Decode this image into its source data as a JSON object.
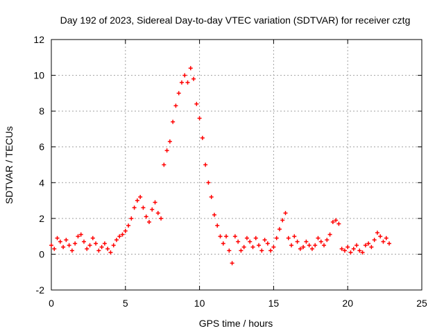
{
  "chart_data": {
    "type": "scatter",
    "title": "Day 192 of 2023, Sidereal Day-to-day VTEC variation (SDTVAR) for receiver cztg",
    "xlabel": "GPS time / hours",
    "ylabel": "SDTVAR / TECUs",
    "xlim": [
      0,
      25
    ],
    "ylim": [
      -2,
      12
    ],
    "x_ticks": [
      0,
      5,
      10,
      15,
      20,
      25
    ],
    "x_tick_labels": [
      "0",
      "5",
      "10",
      "15",
      "20",
      "25"
    ],
    "y_ticks": [
      -2,
      0,
      2,
      4,
      6,
      8,
      10,
      12
    ],
    "y_tick_labels": [
      "-2",
      "0",
      "2",
      "4",
      "6",
      "8",
      "10",
      "12"
    ],
    "grid": true,
    "marker": "+",
    "series": [
      {
        "name": "SDTVAR cztg",
        "color": "#ff0000",
        "x": [
          0.0,
          0.2,
          0.4,
          0.6,
          0.8,
          1.0,
          1.2,
          1.4,
          1.6,
          1.8,
          2.0,
          2.2,
          2.4,
          2.6,
          2.8,
          3.0,
          3.2,
          3.4,
          3.6,
          3.8,
          4.0,
          4.2,
          4.4,
          4.6,
          4.8,
          5.0,
          5.2,
          5.4,
          5.6,
          5.8,
          6.0,
          6.2,
          6.4,
          6.6,
          6.8,
          7.0,
          7.2,
          7.4,
          7.6,
          7.8,
          8.0,
          8.2,
          8.4,
          8.6,
          8.8,
          9.0,
          9.2,
          9.4,
          9.6,
          9.8,
          10.0,
          10.2,
          10.4,
          10.6,
          10.8,
          11.0,
          11.2,
          11.4,
          11.6,
          11.8,
          12.0,
          12.2,
          12.4,
          12.6,
          12.8,
          13.0,
          13.2,
          13.4,
          13.6,
          13.8,
          14.0,
          14.2,
          14.4,
          14.6,
          14.8,
          15.0,
          15.2,
          15.4,
          15.6,
          15.8,
          16.0,
          16.2,
          16.4,
          16.6,
          16.8,
          17.0,
          17.2,
          17.4,
          17.6,
          17.8,
          18.0,
          18.2,
          18.4,
          18.6,
          18.8,
          19.0,
          19.2,
          19.4,
          19.6,
          19.8,
          20.0,
          20.2,
          20.4,
          20.6,
          20.8,
          21.0,
          21.2,
          21.4,
          21.6,
          21.8,
          22.0,
          22.2,
          22.4,
          22.6,
          22.8
        ],
        "y": [
          0.5,
          0.3,
          0.9,
          0.7,
          0.4,
          0.8,
          0.5,
          0.2,
          0.6,
          1.0,
          1.1,
          0.7,
          0.3,
          0.5,
          0.9,
          0.6,
          0.2,
          0.4,
          0.6,
          0.3,
          0.1,
          0.5,
          0.8,
          1.0,
          1.1,
          1.3,
          1.6,
          2.0,
          2.6,
          3.0,
          3.2,
          2.6,
          2.1,
          1.8,
          2.5,
          2.9,
          2.3,
          2.0,
          5.0,
          5.8,
          6.3,
          7.4,
          8.3,
          9.0,
          9.6,
          10.0,
          9.6,
          10.4,
          9.8,
          8.4,
          7.6,
          6.5,
          5.0,
          4.0,
          3.2,
          2.2,
          1.6,
          1.0,
          0.6,
          1.0,
          0.2,
          -0.5,
          1.0,
          0.7,
          0.2,
          0.4,
          0.9,
          0.7,
          0.4,
          0.9,
          0.5,
          0.2,
          0.8,
          0.6,
          0.2,
          0.4,
          0.9,
          1.4,
          1.9,
          2.3,
          0.9,
          0.5,
          1.0,
          0.7,
          0.3,
          0.4,
          0.7,
          0.5,
          0.3,
          0.5,
          0.9,
          0.7,
          0.5,
          0.8,
          1.1,
          1.8,
          1.9,
          1.7,
          0.3,
          0.2,
          0.4,
          0.1,
          0.3,
          0.5,
          0.2,
          0.1,
          0.5,
          0.6,
          0.4,
          0.8,
          1.2,
          1.0,
          0.7,
          0.9,
          0.6
        ]
      }
    ]
  }
}
